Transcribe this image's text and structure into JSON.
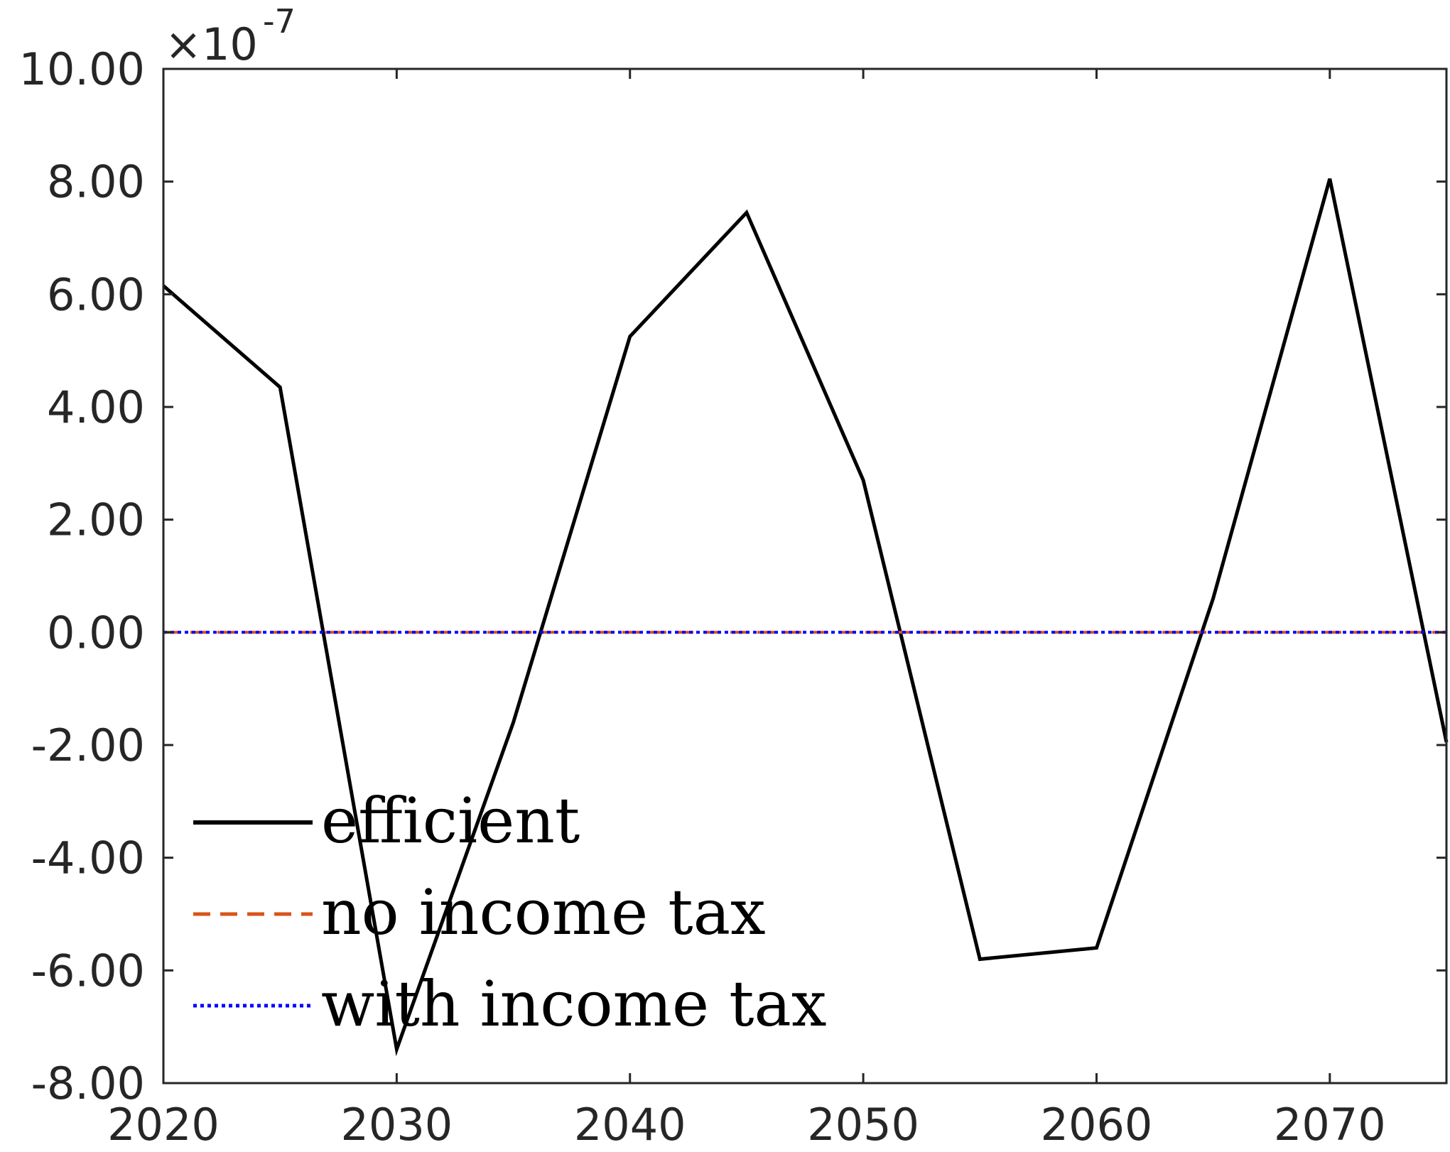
{
  "chart_data": {
    "type": "line",
    "y_exponent_label": "×10",
    "y_exponent_power": "-7",
    "xlim": [
      2020,
      2075
    ],
    "ylim": [
      -8,
      10
    ],
    "x_ticks": [
      2020,
      2030,
      2040,
      2050,
      2060,
      2070
    ],
    "x_tick_labels": [
      "2020",
      "2030",
      "2040",
      "2050",
      "2060",
      "2070"
    ],
    "y_ticks": [
      -8,
      -6,
      -4,
      -2,
      0,
      2,
      4,
      6,
      8,
      10
    ],
    "y_tick_labels": [
      "-8.00",
      "-6.00",
      "-4.00",
      "-2.00",
      "0.00",
      "2.00",
      "4.00",
      "6.00",
      "8.00",
      "10.00"
    ],
    "grid": false,
    "legend_position": "bottom-left",
    "series": [
      {
        "name": "efficient",
        "color": "#000000",
        "style": "solid",
        "x": [
          2020,
          2025,
          2030,
          2035,
          2040,
          2045,
          2050,
          2055,
          2060,
          2065,
          2070,
          2075
        ],
        "y": [
          6.15,
          4.35,
          -7.4,
          -1.6,
          5.25,
          7.45,
          2.7,
          -5.8,
          -5.6,
          0.6,
          8.05,
          -1.95
        ]
      },
      {
        "name": "no income tax",
        "color": "#d95319",
        "style": "dashed",
        "x": [
          2020,
          2025,
          2030,
          2035,
          2040,
          2045,
          2050,
          2055,
          2060,
          2065,
          2070,
          2075
        ],
        "y": [
          0,
          0,
          0,
          0,
          0,
          0,
          0,
          0,
          0,
          0,
          0,
          0
        ]
      },
      {
        "name": "with income tax",
        "color": "#0000ff",
        "style": "dotted",
        "x": [
          2020,
          2025,
          2030,
          2035,
          2040,
          2045,
          2050,
          2055,
          2060,
          2065,
          2070,
          2075
        ],
        "y": [
          0,
          0,
          0,
          0,
          0,
          0,
          0,
          0,
          0,
          0,
          0,
          0
        ]
      }
    ]
  }
}
